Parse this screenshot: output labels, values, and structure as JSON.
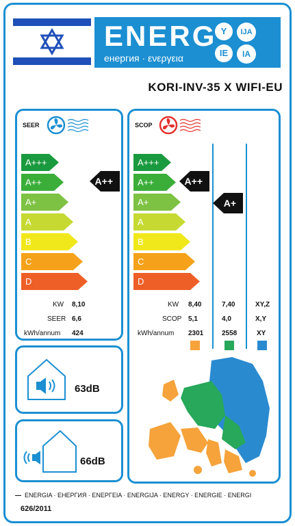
{
  "header": {
    "energ_word": "ENERG",
    "energ_sub": "енергия · ενεργεια",
    "letters": [
      "Y",
      "IJA",
      "IE",
      "IA"
    ]
  },
  "model": "KORI-INV-35 X WIFI-EU",
  "classes": [
    {
      "label": "A+++",
      "color": "#1a9a3e"
    },
    {
      "label": "A++",
      "color": "#3bae3a"
    },
    {
      "label": "A+",
      "color": "#7dc242"
    },
    {
      "label": "A",
      "color": "#c6d932"
    },
    {
      "label": "B",
      "color": "#f1e81c"
    },
    {
      "label": "C",
      "color": "#f5a21a"
    },
    {
      "label": "D",
      "color": "#ee5f28"
    }
  ],
  "seer": {
    "title": "SEER",
    "rating": "A++",
    "rows": [
      {
        "label": "KW",
        "value": "8,10"
      },
      {
        "label": "SEER",
        "value": "6,6"
      },
      {
        "label": "kWh/annum",
        "value": "424"
      }
    ]
  },
  "scop": {
    "title": "SCOP",
    "ratings": [
      "A++",
      "A+"
    ],
    "labels": [
      "KW",
      "SCOP",
      "kWh/annum"
    ],
    "columns": [
      {
        "values": [
          "8,40",
          "5,1",
          "2301"
        ],
        "color": "#f6a33b"
      },
      {
        "values": [
          "7,40",
          "4,0",
          "2558"
        ],
        "color": "#27a85a"
      },
      {
        "values": [
          "XY,Z",
          "X,Y",
          "XY"
        ],
        "color": "#2a8ad0"
      }
    ]
  },
  "noise": {
    "indoor": "63dB",
    "outdoor": "66dB"
  },
  "footer": {
    "languages": "ENERGIA · ЕНЕРГИЯ · ΕΝΕΡΓΕΙΑ · ENERGIJA · ENERGY · ENERGIE · ENERGI",
    "regulation": "626/2011"
  }
}
